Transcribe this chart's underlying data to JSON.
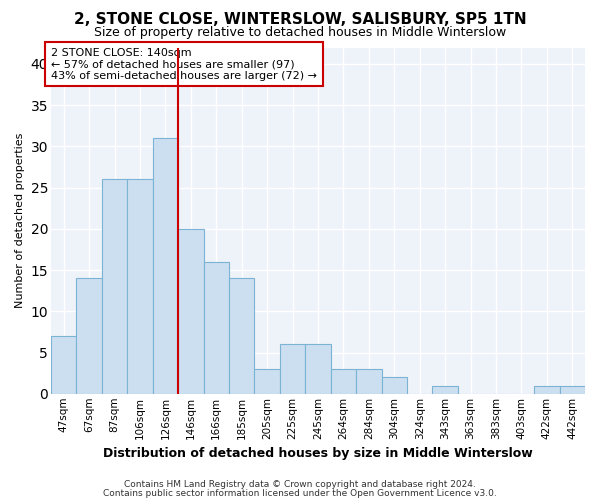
{
  "title1": "2, STONE CLOSE, WINTERSLOW, SALISBURY, SP5 1TN",
  "title2": "Size of property relative to detached houses in Middle Winterslow",
  "xlabel": "Distribution of detached houses by size in Middle Winterslow",
  "ylabel": "Number of detached properties",
  "categories": [
    "47sqm",
    "67sqm",
    "87sqm",
    "106sqm",
    "126sqm",
    "146sqm",
    "166sqm",
    "185sqm",
    "205sqm",
    "225sqm",
    "245sqm",
    "264sqm",
    "284sqm",
    "304sqm",
    "324sqm",
    "343sqm",
    "363sqm",
    "383sqm",
    "403sqm",
    "422sqm",
    "442sqm"
  ],
  "bar_heights": [
    7,
    14,
    26,
    26,
    31,
    20,
    16,
    14,
    3,
    6,
    6,
    3,
    3,
    2,
    0,
    1,
    0,
    0,
    0,
    1,
    1
  ],
  "bar_color": "#ccdff0",
  "bar_edge_color": "#7ab3d4",
  "vline_x": 4.5,
  "vline_color": "#cc0000",
  "annotation_text": "2 STONE CLOSE: 140sqm\n← 57% of detached houses are smaller (97)\n43% of semi-detached houses are larger (72) →",
  "annotation_box_color": "#ffffff",
  "annotation_box_edge": "#cc0000",
  "footer1": "Contains HM Land Registry data © Crown copyright and database right 2024.",
  "footer2": "Contains public sector information licensed under the Open Government Licence v3.0.",
  "bg_color": "#ffffff",
  "plot_bg_color": "#eef2f9",
  "grid_color": "#ffffff",
  "ylim": [
    0,
    42
  ],
  "yticks": [
    0,
    5,
    10,
    15,
    20,
    25,
    30,
    35,
    40
  ],
  "title1_fontsize": 11,
  "title2_fontsize": 9,
  "xlabel_fontsize": 9,
  "ylabel_fontsize": 8,
  "tick_fontsize": 7.5,
  "annot_fontsize": 8,
  "footer_fontsize": 6.5
}
